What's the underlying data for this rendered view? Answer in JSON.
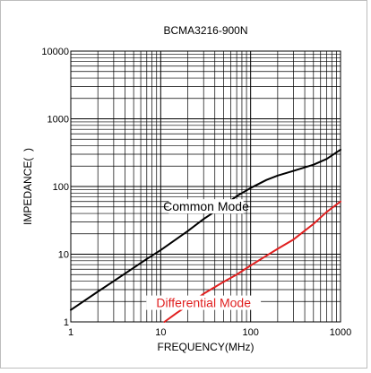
{
  "chart_data": {
    "type": "line",
    "title": "BCMA3216-900N",
    "xlabel": "FREQUENCY(MHz)",
    "ylabel": "IMPEDANCE(  )",
    "x_scale": "log",
    "y_scale": "log",
    "xlim": [
      1,
      1000
    ],
    "ylim": [
      1,
      10000
    ],
    "grid": true,
    "x_ticks": [
      1,
      10,
      100,
      1000
    ],
    "y_ticks": [
      1,
      10,
      100,
      1000,
      10000
    ],
    "x_tick_labels": [
      "1",
      "10",
      "100",
      "1000"
    ],
    "y_tick_labels": [
      "1",
      "10",
      "100",
      "1000",
      "10000"
    ],
    "series": [
      {
        "name": "Common Mode",
        "color": "#000000",
        "x": [
          1,
          2,
          3,
          5,
          7,
          10,
          20,
          30,
          50,
          70,
          100,
          150,
          200,
          300,
          500,
          700,
          1000
        ],
        "y": [
          1.5,
          2.8,
          4.0,
          6.3,
          8.5,
          11.5,
          22,
          33,
          52,
          72,
          95,
          125,
          145,
          170,
          210,
          255,
          350
        ]
      },
      {
        "name": "Differential Mode",
        "color": "#e02020",
        "x": [
          11,
          15,
          20,
          30,
          50,
          70,
          100,
          150,
          200,
          300,
          500,
          700,
          1000
        ],
        "y": [
          1,
          1.35,
          1.75,
          2.6,
          3.9,
          5.0,
          6.8,
          9.5,
          12,
          16.5,
          28,
          42,
          60
        ]
      }
    ]
  }
}
